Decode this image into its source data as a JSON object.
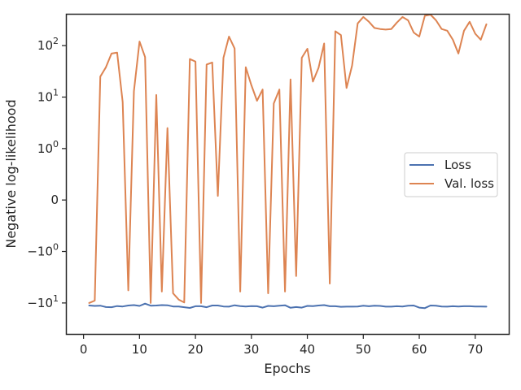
{
  "chart_data": {
    "type": "line",
    "xlabel": "Epochs",
    "ylabel": "Negative log-likelihood",
    "y_scale": "symlog",
    "xlim": [
      -3,
      76
    ],
    "ylim": [
      -40,
      400
    ],
    "x_ticks": [
      0,
      10,
      20,
      30,
      40,
      50,
      60,
      70
    ],
    "y_ticks": [
      {
        "value": 100,
        "label": "10",
        "exp": "2"
      },
      {
        "value": 10,
        "label": "10",
        "exp": "1"
      },
      {
        "value": 1,
        "label": "10",
        "exp": "0"
      },
      {
        "value": 0,
        "label": "0",
        "exp": ""
      },
      {
        "value": -1,
        "label": "−10",
        "exp": "0"
      },
      {
        "value": -10,
        "label": "−10",
        "exp": "1"
      }
    ],
    "legend": {
      "position": "center-right"
    },
    "series": [
      {
        "name": "Loss",
        "color": "#4c72b0",
        "x": [
          1,
          2,
          3,
          4,
          5,
          6,
          7,
          8,
          9,
          10,
          11,
          12,
          13,
          14,
          15,
          16,
          17,
          18,
          19,
          20,
          21,
          22,
          23,
          24,
          25,
          26,
          27,
          28,
          29,
          30,
          31,
          32,
          33,
          34,
          35,
          36,
          37,
          38,
          39,
          40,
          41,
          42,
          43,
          44,
          45,
          46,
          47,
          48,
          49,
          50,
          51,
          52,
          53,
          54,
          55,
          56,
          57,
          58,
          59,
          60,
          61,
          62,
          63,
          64,
          65,
          66,
          67,
          68,
          69,
          70,
          71,
          72
        ],
        "values": [
          -11.2,
          -11.4,
          -11.3,
          -12.0,
          -12.1,
          -11.5,
          -11.7,
          -11.2,
          -11.0,
          -11.4,
          -10.3,
          -11.3,
          -11.2,
          -11.0,
          -11.1,
          -11.7,
          -11.7,
          -12.1,
          -12.5,
          -11.6,
          -11.6,
          -12.1,
          -11.2,
          -11.2,
          -11.7,
          -11.8,
          -11.1,
          -11.5,
          -11.7,
          -11.5,
          -11.6,
          -12.3,
          -11.4,
          -11.6,
          -11.3,
          -11.1,
          -12.4,
          -12.0,
          -12.3,
          -11.4,
          -11.5,
          -11.2,
          -11.0,
          -11.6,
          -11.6,
          -11.9,
          -11.8,
          -11.8,
          -11.7,
          -11.3,
          -11.6,
          -11.3,
          -11.4,
          -11.8,
          -11.8,
          -11.6,
          -11.7,
          -11.3,
          -11.2,
          -12.3,
          -12.6,
          -11.2,
          -11.3,
          -11.7,
          -11.8,
          -11.6,
          -11.7,
          -11.6,
          -11.6,
          -11.7,
          -11.7,
          -11.8
        ]
      },
      {
        "name": "Val. loss",
        "color": "#dd8452",
        "x": [
          1,
          2,
          3,
          4,
          5,
          6,
          7,
          8,
          9,
          10,
          11,
          12,
          13,
          14,
          15,
          16,
          17,
          18,
          19,
          20,
          21,
          22,
          23,
          24,
          25,
          26,
          27,
          28,
          29,
          30,
          31,
          32,
          33,
          34,
          35,
          36,
          37,
          38,
          39,
          40,
          41,
          42,
          43,
          44,
          45,
          46,
          47,
          48,
          49,
          50,
          51,
          52,
          53,
          54,
          55,
          56,
          57,
          58,
          59,
          60,
          61,
          62,
          63,
          64,
          65,
          66,
          67,
          68,
          69,
          70,
          71,
          72
        ],
        "values": [
          -10.0,
          -9.0,
          25.0,
          38.0,
          70.0,
          73.0,
          8.0,
          -5.7,
          13.0,
          120.0,
          60.0,
          -10.0,
          11.0,
          -6.0,
          2.5,
          -6.5,
          -8.6,
          -9.8,
          55.0,
          49.0,
          -10.0,
          43.0,
          47.0,
          0.08,
          58.0,
          150.0,
          88.0,
          -6.0,
          38.0,
          17.0,
          8.5,
          14.0,
          -6.5,
          7.5,
          14.0,
          -6.0,
          22.0,
          -3.0,
          58.0,
          87.0,
          20.0,
          37.0,
          110.0,
          -4.2,
          190.0,
          160.0,
          15.0,
          41.0,
          270.0,
          360.0,
          290.0,
          220.0,
          210.0,
          205.0,
          210.0,
          280.0,
          360.0,
          310.0,
          180.0,
          150.0,
          380.0,
          400.0,
          310.0,
          210.0,
          195.0,
          130.0,
          70.0,
          195.0,
          290.0,
          170.0,
          130.0,
          260.0
        ]
      }
    ]
  }
}
